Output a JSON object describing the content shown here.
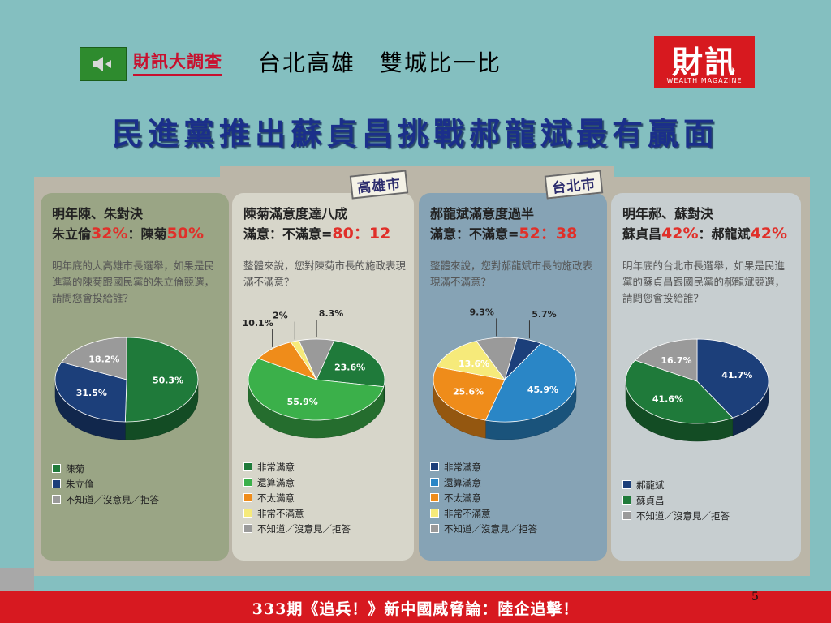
{
  "header": {
    "brand_title": "財訊大調查",
    "subtitle": "台北高雄　雙城比一比",
    "logo_text": "財訊",
    "logo_subtext": "WEALTH MAGAZINE"
  },
  "headline": "民進黨推出蘇貞昌挑戰郝龍斌最有贏面",
  "city_tags": {
    "kaohsiung": "高雄市",
    "taipei": "台北市"
  },
  "chart_data": [
    {
      "type": "pie",
      "title_line1": "明年陳、朱對決",
      "title_line2_prefix": "朱立倫",
      "title_line2_v1": "32%",
      "title_line2_mid": "：陳菊",
      "title_line2_v2": "50%",
      "description": "明年底的大高雄市長選舉，如果是民進黨的陳菊跟國民黨的朱立倫競選，請問您會投給誰？",
      "slices": [
        {
          "label": "陳菊",
          "value": 50.3,
          "value_label": "50.3%",
          "color": "#1f7a3a"
        },
        {
          "label": "朱立倫",
          "value": 31.5,
          "value_label": "31.5%",
          "color": "#1c3f7a"
        },
        {
          "label": "不知道／沒意見／拒答",
          "value": 18.2,
          "value_label": "18.2%",
          "color": "#9a9a9a"
        }
      ]
    },
    {
      "type": "pie",
      "title_line1": "陳菊滿意度達八成",
      "title_line2_prefix": "滿意：不滿意=",
      "title_line2_v1": "80：12",
      "title_line2_mid": "",
      "title_line2_v2": "",
      "description": "整體來說，您對陳菊市長的施政表現滿不滿意？",
      "slices": [
        {
          "label": "非常滿意",
          "value": 23.6,
          "value_label": "23.6%",
          "color": "#1f7a3a"
        },
        {
          "label": "還算滿意",
          "value": 55.9,
          "value_label": "55.9%",
          "color": "#3bb04a"
        },
        {
          "label": "不太滿意",
          "value": 10.1,
          "value_label": "10.1%",
          "color": "#ef8c1a"
        },
        {
          "label": "非常不滿意",
          "value": 2,
          "value_label": "2%",
          "color": "#f6ea7a"
        },
        {
          "label": "不知道／沒意見／拒答",
          "value": 8.3,
          "value_label": "8.3%",
          "color": "#9a9a9a"
        }
      ]
    },
    {
      "type": "pie",
      "title_line1": "郝龍斌滿意度過半",
      "title_line2_prefix": "滿意：不滿意=",
      "title_line2_v1": "52：38",
      "title_line2_mid": "",
      "title_line2_v2": "",
      "description": "整體來說，您對郝龍斌市長的施政表現滿不滿意？",
      "slices": [
        {
          "label": "非常滿意",
          "value": 5.7,
          "value_label": "5.7%",
          "color": "#1c3f7a"
        },
        {
          "label": "還算滿意",
          "value": 45.9,
          "value_label": "45.9%",
          "color": "#2a86c6"
        },
        {
          "label": "不太滿意",
          "value": 25.6,
          "value_label": "25.6%",
          "color": "#ef8c1a"
        },
        {
          "label": "非常不滿意",
          "value": 13.6,
          "value_label": "13.6%",
          "color": "#f6ea7a"
        },
        {
          "label": "不知道／沒意見／拒答",
          "value": 9.3,
          "value_label": "9.3%",
          "color": "#9a9a9a"
        }
      ]
    },
    {
      "type": "pie",
      "title_line1": "明年郝、蘇對決",
      "title_line2_prefix": "蘇貞昌",
      "title_line2_v1": "42%",
      "title_line2_mid": "：郝龍斌",
      "title_line2_v2": "42%",
      "description": "明年底的台北市長選舉，如果是民進黨的蘇貞昌跟國民黨的郝龍斌競選，請問您會投給誰？",
      "slices": [
        {
          "label": "郝龍斌",
          "value": 41.7,
          "value_label": "41.7%",
          "color": "#1c3f7a"
        },
        {
          "label": "蘇貞昌",
          "value": 41.6,
          "value_label": "41.6%",
          "color": "#1f7a3a"
        },
        {
          "label": "不知道／沒意見／拒答",
          "value": 16.7,
          "value_label": "16.7%",
          "color": "#9a9a9a"
        }
      ]
    }
  ],
  "footer": "333期《追兵！》新中國威脅論：陸企追擊！",
  "page_number": "5"
}
